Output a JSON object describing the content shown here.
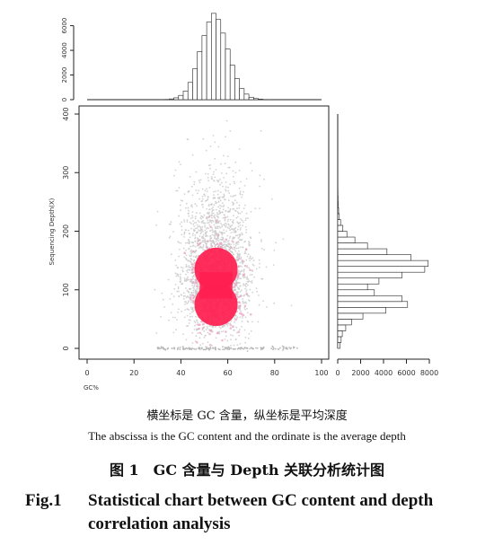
{
  "chart_data": {
    "type": "scatter",
    "xlabel": "GC%",
    "ylabel": "Sequencing Depth(X)",
    "xlim": [
      0,
      100
    ],
    "ylim": [
      0,
      400
    ],
    "x_ticks": [
      0,
      20,
      40,
      60,
      80,
      100
    ],
    "y_ticks": [
      0,
      100,
      200,
      300,
      400
    ],
    "grid": false,
    "density_colors": {
      "low": "#c8c8c8",
      "mid": "#e8a0c0",
      "high": "#ff1e50"
    },
    "dense_regions": [
      {
        "x_center": 55,
        "y_center": 135,
        "note": "upper hot cluster"
      },
      {
        "x_center": 55,
        "y_center": 75,
        "note": "lower hot cluster"
      }
    ],
    "top_marginal": {
      "type": "histogram",
      "x": [
        30,
        32,
        34,
        36,
        38,
        40,
        42,
        44,
        46,
        48,
        50,
        52,
        54,
        56,
        58,
        60,
        62,
        64,
        66,
        68,
        70,
        72,
        74,
        76,
        78,
        80
      ],
      "counts": [
        0,
        5,
        20,
        60,
        150,
        350,
        700,
        1400,
        2500,
        3900,
        5200,
        6300,
        7000,
        6500,
        5400,
        4100,
        2800,
        1700,
        900,
        450,
        200,
        90,
        40,
        15,
        5,
        0
      ],
      "ylim": [
        0,
        7500
      ],
      "ticks": [
        0,
        2000,
        4000,
        6000
      ]
    },
    "right_marginal": {
      "type": "histogram",
      "y": [
        0,
        10,
        20,
        30,
        40,
        50,
        60,
        70,
        80,
        90,
        100,
        110,
        120,
        130,
        140,
        150,
        160,
        170,
        180,
        190,
        200,
        210,
        220,
        230,
        240,
        250,
        260,
        270,
        280,
        290,
        300,
        310,
        320,
        330,
        340,
        350,
        360,
        370,
        380,
        390
      ],
      "counts": [
        200,
        300,
        400,
        700,
        1200,
        2200,
        4200,
        6100,
        5600,
        3200,
        2600,
        3600,
        5600,
        7600,
        7900,
        6400,
        4300,
        2600,
        1500,
        800,
        450,
        250,
        140,
        80,
        50,
        30,
        20,
        15,
        10,
        8,
        6,
        5,
        4,
        3,
        2,
        2,
        1,
        1,
        1,
        0
      ],
      "xlim": [
        0,
        8000
      ],
      "ticks": [
        0,
        2000,
        4000,
        6000,
        8000
      ]
    }
  },
  "captions": {
    "axis_desc_cn": "横坐标是 GC 含量，纵坐标是平均深度",
    "axis_desc_en": "The abscissa is the GC content and the ordinate is the average depth",
    "title_cn": "图 1　GC 含量与 Depth 关联分析统计图",
    "title_en_label": "Fig.1",
    "title_en_line1": "Statistical chart between GC content and depth",
    "title_en_line2": "correlation analysis"
  }
}
